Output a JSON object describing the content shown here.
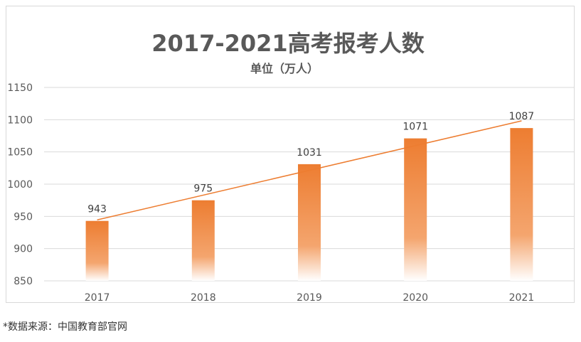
{
  "chart_data": {
    "type": "bar",
    "title": "2017-2021高考报考人数",
    "subtitle": "单位（万人）",
    "categories": [
      "2017",
      "2018",
      "2019",
      "2020",
      "2021"
    ],
    "values": [
      943,
      975,
      1031,
      1071,
      1087
    ],
    "data_labels": [
      "943",
      "975",
      "1031",
      "1071",
      "1087"
    ],
    "y_ticks": [
      "850",
      "900",
      "950",
      "1000",
      "1050",
      "1100",
      "1150"
    ],
    "ylim": [
      850,
      1150
    ],
    "grid": true,
    "trendline": "linear",
    "colors": {
      "bar_top": "#ED7D31",
      "bar_bottom": "#FFFFFF",
      "trendline": "#ED7D31",
      "grid": "#d9d9d9",
      "text": "#595959"
    }
  },
  "footnote": "*数据来源：中国教育部官网"
}
